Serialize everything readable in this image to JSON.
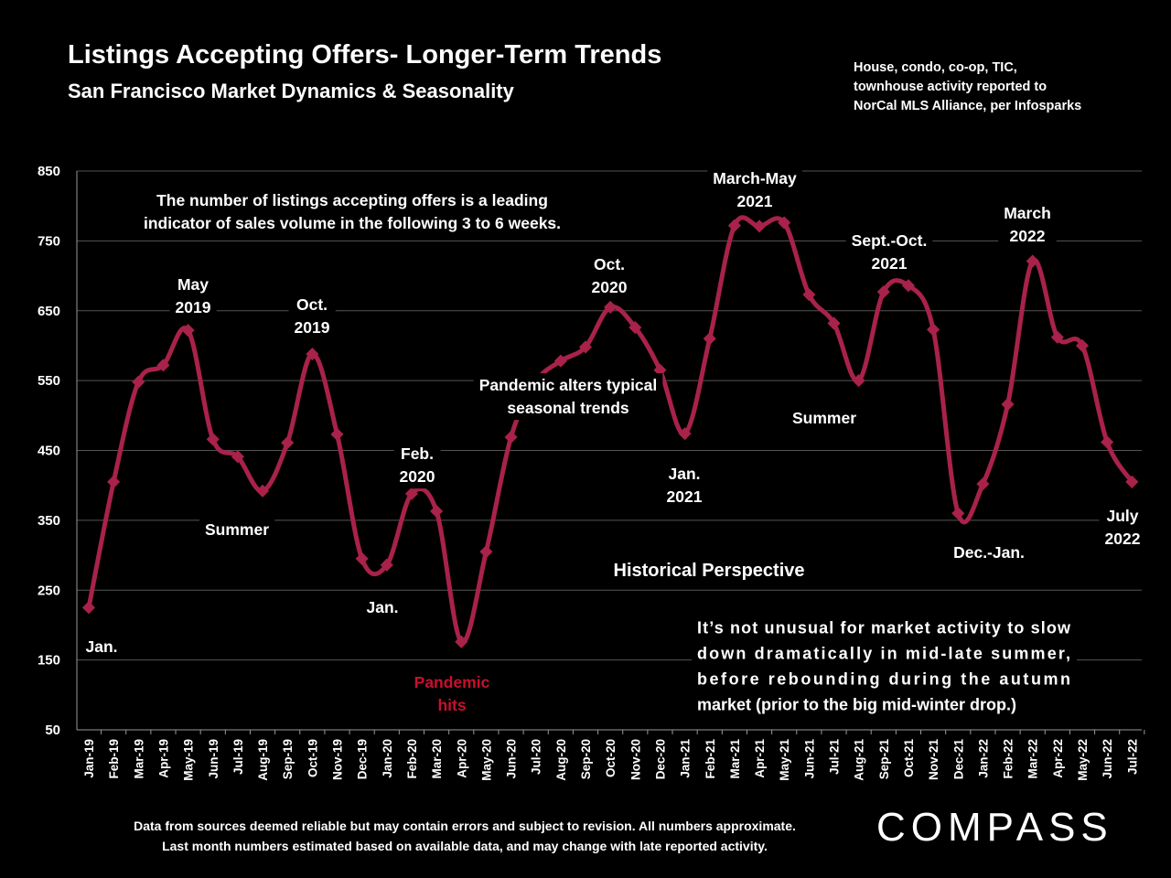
{
  "header": {
    "title": "Listings Accepting Offers- Longer-Term Trends",
    "subtitle": "San Francisco Market Dynamics & Seasonality",
    "source_note": [
      "House, condo, co-op, TIC,",
      "townhouse activity reported to",
      "NorCal MLS Alliance, per Infosparks"
    ]
  },
  "footer": {
    "line1": "Data from sources deemed reliable but may contain errors and subject to revision. All numbers approximate.",
    "line2": "Last month numbers estimated based on available data, and may change with late reported activity."
  },
  "logo": "COMPASS",
  "colors": {
    "line": "#A8224A",
    "background": "#000000",
    "pandemic_text": "#C8102E",
    "gridline": "#555555"
  },
  "chart_data": {
    "type": "line",
    "ylim": [
      50,
      850
    ],
    "yticks": [
      50,
      150,
      250,
      350,
      450,
      550,
      650,
      750,
      850
    ],
    "grid": true,
    "categories": [
      "Jan-19",
      "Feb-19",
      "Mar-19",
      "Apr-19",
      "May-19",
      "Jun-19",
      "Jul-19",
      "Aug-19",
      "Sep-19",
      "Oct-19",
      "Nov-19",
      "Dec-19",
      "Jan-20",
      "Feb-20",
      "Mar-20",
      "Apr-20",
      "May-20",
      "Jun-20",
      "Jul-20",
      "Aug-20",
      "Sep-20",
      "Oct-20",
      "Nov-20",
      "Dec-20",
      "Jan-21",
      "Feb-21",
      "Mar-21",
      "Apr-21",
      "May-21",
      "Jun-21",
      "Jul-21",
      "Aug-21",
      "Sep-21",
      "Oct-21",
      "Nov-21",
      "Dec-21",
      "Jan-22",
      "Feb-22",
      "Mar-22",
      "Apr-22",
      "May-22",
      "Jun-22",
      "Jul-22"
    ],
    "series": [
      {
        "values": [
          225,
          405,
          548,
          572,
          622,
          466,
          441,
          392,
          461,
          588,
          473,
          295,
          286,
          388,
          363,
          176,
          305,
          469,
          548,
          578,
          598,
          655,
          626,
          565,
          474,
          610,
          772,
          771,
          776,
          673,
          632,
          550,
          677,
          686,
          623,
          360,
          402,
          516,
          721,
          612,
          600,
          462,
          405
        ]
      }
    ],
    "annotations": [
      {
        "text": "The number of listings accepting offers is a leading\nindicator of sales volume in the following 3 to 6 weeks."
      },
      {
        "text": "May\n2019"
      },
      {
        "text": "Oct.\n2019"
      },
      {
        "text": "Summer",
        "id": "summer-2019"
      },
      {
        "text": "Jan.",
        "id": "jan-2019"
      },
      {
        "text": "Jan.",
        "id": "jan-2020"
      },
      {
        "text": "Feb.\n2020"
      },
      {
        "text": "Pandemic\nhits"
      },
      {
        "text": "Oct.\n2020"
      },
      {
        "text": "Pandemic alters typical\nseasonal trends"
      },
      {
        "text": "Jan.\n2021"
      },
      {
        "text": "March-May\n2021"
      },
      {
        "text": "Summer",
        "id": "summer-2021"
      },
      {
        "text": "Sept.-Oct.\n2021"
      },
      {
        "text": "March\n2022"
      },
      {
        "text": "Dec.-Jan."
      },
      {
        "text": "July\n2022"
      },
      {
        "text": "Historical Perspective"
      },
      {
        "text": "It’s not unusual for market activity to slow\ndown dramatically in mid-late summer,\nbefore rebounding during the autumn\nmarket (prior to the big mid-winter drop.)"
      }
    ]
  }
}
